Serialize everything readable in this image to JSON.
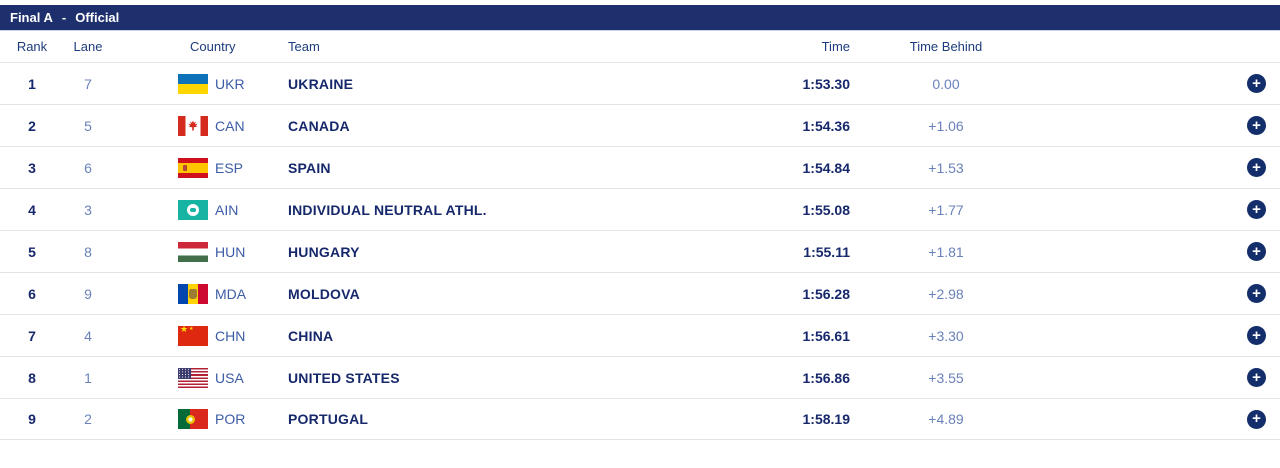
{
  "panel": {
    "title_event": "Final A",
    "title_separator": "-",
    "title_status": "Official"
  },
  "table": {
    "headers": {
      "rank": "Rank",
      "lane": "Lane",
      "country": "Country",
      "team": "Team",
      "time": "Time",
      "time_behind": "Time Behind"
    },
    "expand_icon": "+",
    "rows": [
      {
        "rank": "1",
        "lane": "7",
        "code": "UKR",
        "team": "UKRAINE",
        "time": "1:53.30",
        "behind": "0.00"
      },
      {
        "rank": "2",
        "lane": "5",
        "code": "CAN",
        "team": "CANADA",
        "time": "1:54.36",
        "behind": "+1.06"
      },
      {
        "rank": "3",
        "lane": "6",
        "code": "ESP",
        "team": "SPAIN",
        "time": "1:54.84",
        "behind": "+1.53"
      },
      {
        "rank": "4",
        "lane": "3",
        "code": "AIN",
        "team": "INDIVIDUAL NEUTRAL ATHL.",
        "time": "1:55.08",
        "behind": "+1.77"
      },
      {
        "rank": "5",
        "lane": "8",
        "code": "HUN",
        "team": "HUNGARY",
        "time": "1:55.11",
        "behind": "+1.81"
      },
      {
        "rank": "6",
        "lane": "9",
        "code": "MDA",
        "team": "MOLDOVA",
        "time": "1:56.28",
        "behind": "+2.98"
      },
      {
        "rank": "7",
        "lane": "4",
        "code": "CHN",
        "team": "CHINA",
        "time": "1:56.61",
        "behind": "+3.30"
      },
      {
        "rank": "8",
        "lane": "1",
        "code": "USA",
        "team": "UNITED STATES",
        "time": "1:56.86",
        "behind": "+3.55"
      },
      {
        "rank": "9",
        "lane": "2",
        "code": "POR",
        "team": "PORTUGAL",
        "time": "1:58.19",
        "behind": "+4.89"
      }
    ]
  },
  "colors": {
    "header_bar": "#1e2f6e",
    "accent_navy": "#16286b",
    "muted_blue": "#6a82ba",
    "country_code_blue": "#3c5ca6",
    "separator": "#e2e4ea",
    "plus_button": "#142e6b",
    "ain_teal": "#17b3a3"
  }
}
